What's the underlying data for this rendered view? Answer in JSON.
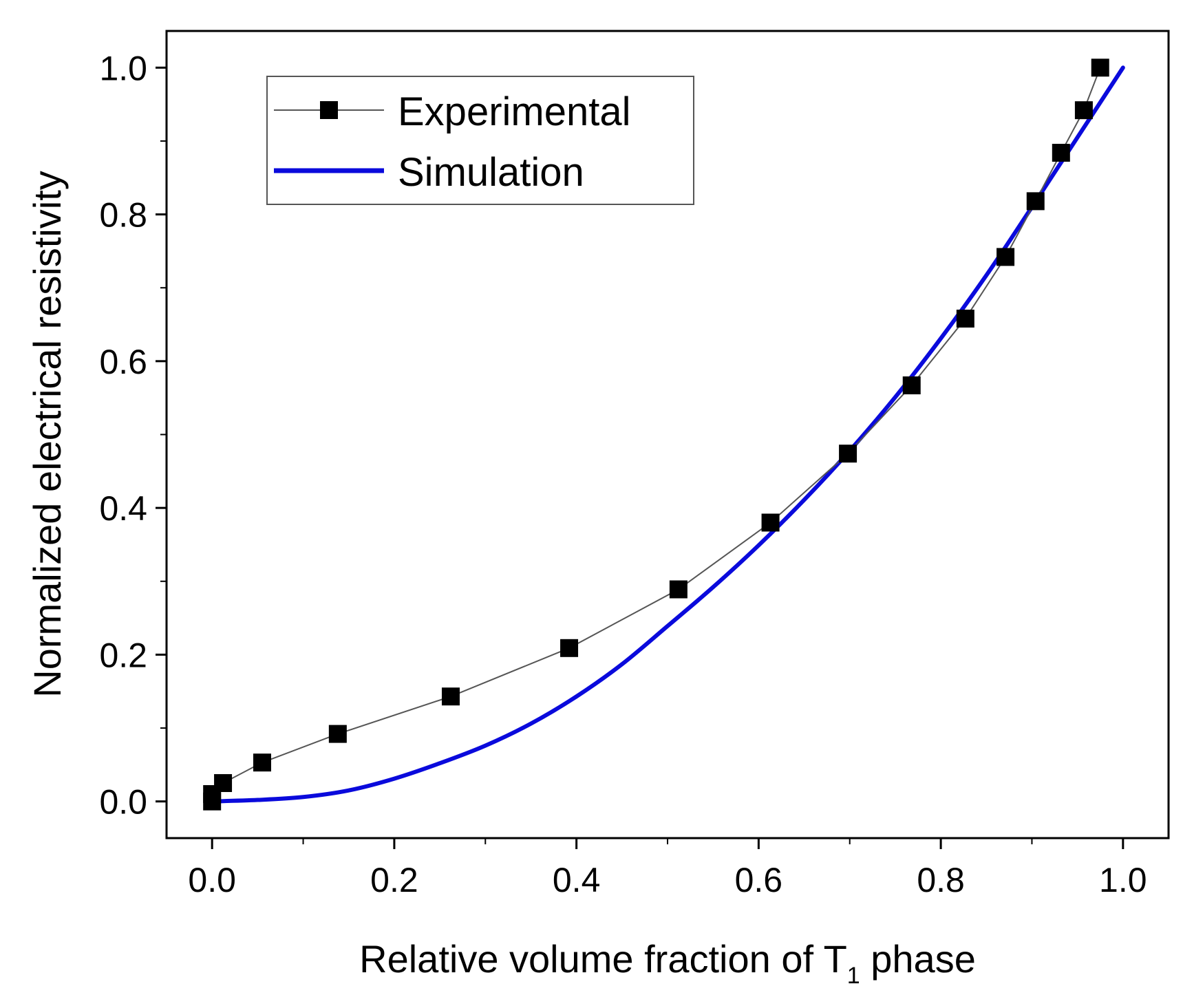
{
  "chart_data": {
    "type": "line",
    "title": "",
    "xlabel": "Relative volume fraction of T",
    "xlabel_subscript": "1",
    "xlabel_suffix": " phase",
    "ylabel": "Normalized electrical resistivity",
    "xlim": [
      -0.05,
      1.05
    ],
    "ylim": [
      -0.05,
      1.05
    ],
    "x_ticks": [
      0.0,
      0.2,
      0.4,
      0.6,
      0.8,
      1.0
    ],
    "x_tick_labels": [
      "0.0",
      "0.2",
      "0.4",
      "0.6",
      "0.8",
      "1.0"
    ],
    "y_ticks": [
      0.0,
      0.2,
      0.4,
      0.6,
      0.8,
      1.0
    ],
    "y_tick_labels": [
      "0.0",
      "0.2",
      "0.4",
      "0.6",
      "0.8",
      "1.0"
    ],
    "grid": false,
    "legend_position": "top-left",
    "series": [
      {
        "name": "Experimental",
        "style": "line-with-square-markers",
        "line_color": "#555555",
        "marker_color": "#000000",
        "x": [
          0.0,
          0.0,
          0.012,
          0.055,
          0.138,
          0.262,
          0.392,
          0.512,
          0.613,
          0.698,
          0.768,
          0.827,
          0.871,
          0.904,
          0.932,
          0.957,
          0.975
        ],
        "y": [
          0.0,
          0.01,
          0.025,
          0.053,
          0.092,
          0.143,
          0.209,
          0.289,
          0.38,
          0.474,
          0.567,
          0.658,
          0.742,
          0.818,
          0.884,
          0.942,
          1.0
        ]
      },
      {
        "name": "Simulation",
        "style": "line",
        "line_color": "#0a0adc",
        "x": [
          0.0,
          0.05,
          0.1,
          0.15,
          0.2,
          0.25,
          0.3,
          0.35,
          0.4,
          0.45,
          0.5,
          0.55,
          0.6,
          0.65,
          0.7,
          0.75,
          0.8,
          0.85,
          0.9,
          0.95,
          1.0
        ],
        "y": [
          0.0,
          0.002,
          0.006,
          0.015,
          0.031,
          0.052,
          0.076,
          0.106,
          0.143,
          0.187,
          0.239,
          0.292,
          0.349,
          0.411,
          0.478,
          0.551,
          0.631,
          0.717,
          0.81,
          0.905,
          1.0
        ]
      }
    ]
  }
}
